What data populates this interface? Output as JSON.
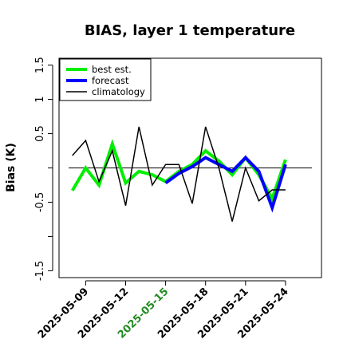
{
  "chart_data": {
    "type": "line",
    "title": "BIAS, layer 1 temperature",
    "ylabel": "Bias (K)",
    "xlabel": "",
    "ylim": [
      -1.6,
      1.6
    ],
    "yticks": [
      -1.5,
      -0.5,
      0.5,
      1.0,
      1.5
    ],
    "yticks_minor": [
      -1.0,
      0.0
    ],
    "xlim_day_index": [
      -1.0,
      18.7
    ],
    "reference_line": 0.0,
    "x": [
      "2025-05-08",
      "2025-05-09",
      "2025-05-10",
      "2025-05-11",
      "2025-05-12",
      "2025-05-13",
      "2025-05-14",
      "2025-05-15",
      "2025-05-16",
      "2025-05-17",
      "2025-05-18",
      "2025-05-19",
      "2025-05-20",
      "2025-05-21",
      "2025-05-22",
      "2025-05-23",
      "2025-05-24"
    ],
    "xtick_labels": [
      "2025-05-09",
      "2025-05-12",
      "2025-05-15",
      "2025-05-18",
      "2025-05-21",
      "2025-05-24"
    ],
    "xtick_indices": [
      1,
      4,
      7,
      10,
      13,
      16
    ],
    "highlight_tick": "2025-05-15",
    "highlight_color": "#228b22",
    "legend_position": "top-left",
    "series": [
      {
        "name": "best est.",
        "color": "#00ee00",
        "width": 4,
        "values": [
          -0.33,
          0.0,
          -0.25,
          0.35,
          -0.22,
          -0.05,
          -0.1,
          -0.2,
          -0.05,
          0.05,
          0.25,
          0.1,
          -0.1,
          0.15,
          -0.1,
          -0.45,
          0.12
        ]
      },
      {
        "name": "forecast",
        "color": "#0000ff",
        "width": 4,
        "values": [
          null,
          null,
          null,
          null,
          null,
          null,
          null,
          -0.22,
          -0.08,
          0.02,
          0.15,
          0.05,
          -0.05,
          0.15,
          -0.05,
          -0.58,
          0.05
        ]
      },
      {
        "name": "climatology",
        "color": "#000000",
        "width": 1.5,
        "values": [
          0.18,
          0.4,
          -0.2,
          0.25,
          -0.55,
          0.6,
          -0.25,
          0.05,
          0.05,
          -0.52,
          0.6,
          0.0,
          -0.78,
          0.0,
          -0.48,
          -0.32,
          -0.32
        ]
      }
    ]
  }
}
